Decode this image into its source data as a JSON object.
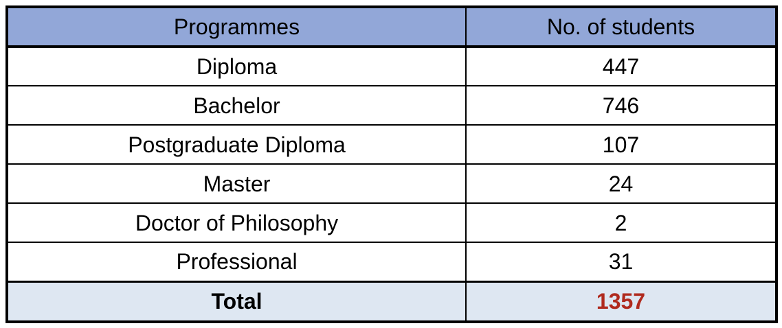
{
  "table": {
    "columns": [
      {
        "label": "Programmes"
      },
      {
        "label": "No. of students"
      }
    ],
    "rows": [
      {
        "programme": "Diploma",
        "students": "447"
      },
      {
        "programme": "Bachelor",
        "students": "746"
      },
      {
        "programme": "Postgraduate Diploma",
        "students": "107"
      },
      {
        "programme": "Master",
        "students": "24"
      },
      {
        "programme": "Doctor of Philosophy",
        "students": "2"
      },
      {
        "programme": "Professional",
        "students": "31"
      }
    ],
    "total": {
      "label": "Total",
      "students": "1357"
    }
  },
  "colors": {
    "header_bg": "#92A7D8",
    "total_bg": "#DEE7F2",
    "number_color": "#B02A1E",
    "border_color": "#000000",
    "text_color": "#000000"
  },
  "chart_data": {
    "type": "table",
    "title": "",
    "columns": [
      "Programmes",
      "No. of students"
    ],
    "categories": [
      "Diploma",
      "Bachelor",
      "Postgraduate Diploma",
      "Master",
      "Doctor of Philosophy",
      "Professional"
    ],
    "values": [
      447,
      746,
      107,
      24,
      2,
      31
    ],
    "total_label": "Total",
    "total_value": 1357
  }
}
